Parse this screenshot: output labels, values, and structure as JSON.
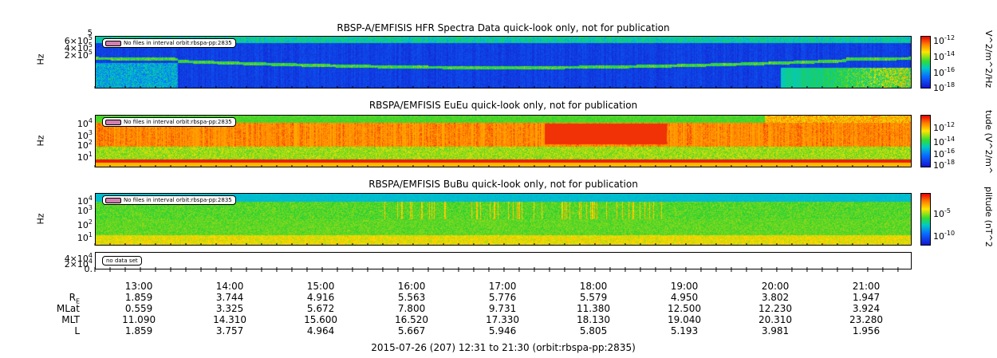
{
  "panels": [
    {
      "title": "RBSP-A/EMFISIS  HFR Spectra Data quick-look only, not for publication",
      "ylabel": "Hz",
      "yticks": [
        {
          "b": "6×10",
          "e": "5"
        },
        {
          "b": "4×10",
          "e": "5"
        },
        {
          "b": "2×10",
          "e": "5"
        }
      ],
      "ytick_top": "5",
      "badge": "No files in interval orbit:rbspa-pp:2835",
      "cbar_label": "V^2/m^2/Hz",
      "cbar_ticks": [
        {
          "b": "10",
          "e": "-12"
        },
        {
          "b": "10",
          "e": "-14"
        },
        {
          "b": "10",
          "e": "-16"
        },
        {
          "b": "10",
          "e": "-18"
        }
      ]
    },
    {
      "title": "RBSPA/EMFISIS  EuEu quick-look only, not for publication",
      "ylabel": "Hz",
      "yticks": [
        {
          "b": "10",
          "e": "4"
        },
        {
          "b": "10",
          "e": "3"
        },
        {
          "b": "10",
          "e": "2"
        },
        {
          "b": "10",
          "e": "1"
        }
      ],
      "badge": "No files in interval orbit:rbspa-pp:2835",
      "cbar_label": "tude (V^2/m^",
      "cbar_ticks": [
        {
          "b": "10",
          "e": "-12"
        },
        {
          "b": "10",
          "e": "-14"
        },
        {
          "b": "10",
          "e": "-16"
        },
        {
          "b": "10",
          "e": "-18"
        }
      ]
    },
    {
      "title": "RBSPA/EMFISIS  BuBu quick-look only, not for publication",
      "ylabel": "Hz",
      "yticks": [
        {
          "b": "10",
          "e": "4"
        },
        {
          "b": "10",
          "e": "3"
        },
        {
          "b": "10",
          "e": "2"
        },
        {
          "b": "10",
          "e": "1"
        }
      ],
      "badge": "No files in interval orbit:rbspa-pp:2835",
      "cbar_label": "plitude (nT^2",
      "cbar_ticks": [
        {
          "b": "10",
          "e": "-5"
        },
        {
          "b": "10",
          "e": "-10"
        }
      ]
    },
    {
      "yticks": [
        {
          "b": "4×10",
          "e": "4"
        },
        {
          "b": "2×10",
          "e": "4"
        },
        {
          "b": "0.",
          "e": ""
        }
      ],
      "badge": "no data set"
    }
  ],
  "chart_data": {
    "type": "heatmap",
    "x_range": [
      "12:31",
      "21:30"
    ],
    "x_ticks": [
      "13:00",
      "14:00",
      "15:00",
      "16:00",
      "17:00",
      "18:00",
      "19:00",
      "20:00",
      "21:00"
    ],
    "panels": [
      "HFR Spectra",
      "EuEu",
      "BuBu",
      "(no data set)"
    ],
    "ephemeris": {
      "labels": [
        "R",
        "MLat",
        "MLT",
        "L"
      ],
      "R_subscript": "E",
      "rows": {
        "R": [
          "1.859",
          "3.744",
          "4.916",
          "5.563",
          "5.776",
          "5.579",
          "4.950",
          "3.802",
          "1.947"
        ],
        "MLat": [
          "0.559",
          "3.325",
          "5.672",
          "7.800",
          "9.731",
          "11.380",
          "12.500",
          "12.230",
          "3.924"
        ],
        "MLT": [
          "11.090",
          "14.310",
          "15.600",
          "16.520",
          "17.330",
          "18.130",
          "19.040",
          "20.310",
          "23.280"
        ],
        "L": [
          "1.859",
          "3.757",
          "4.964",
          "5.667",
          "5.946",
          "5.805",
          "5.193",
          "3.981",
          "1.956"
        ]
      }
    }
  },
  "footer": "2015-07-26 (207) 12:31 to 21:30 (orbit:rbspa-pp:2835)"
}
